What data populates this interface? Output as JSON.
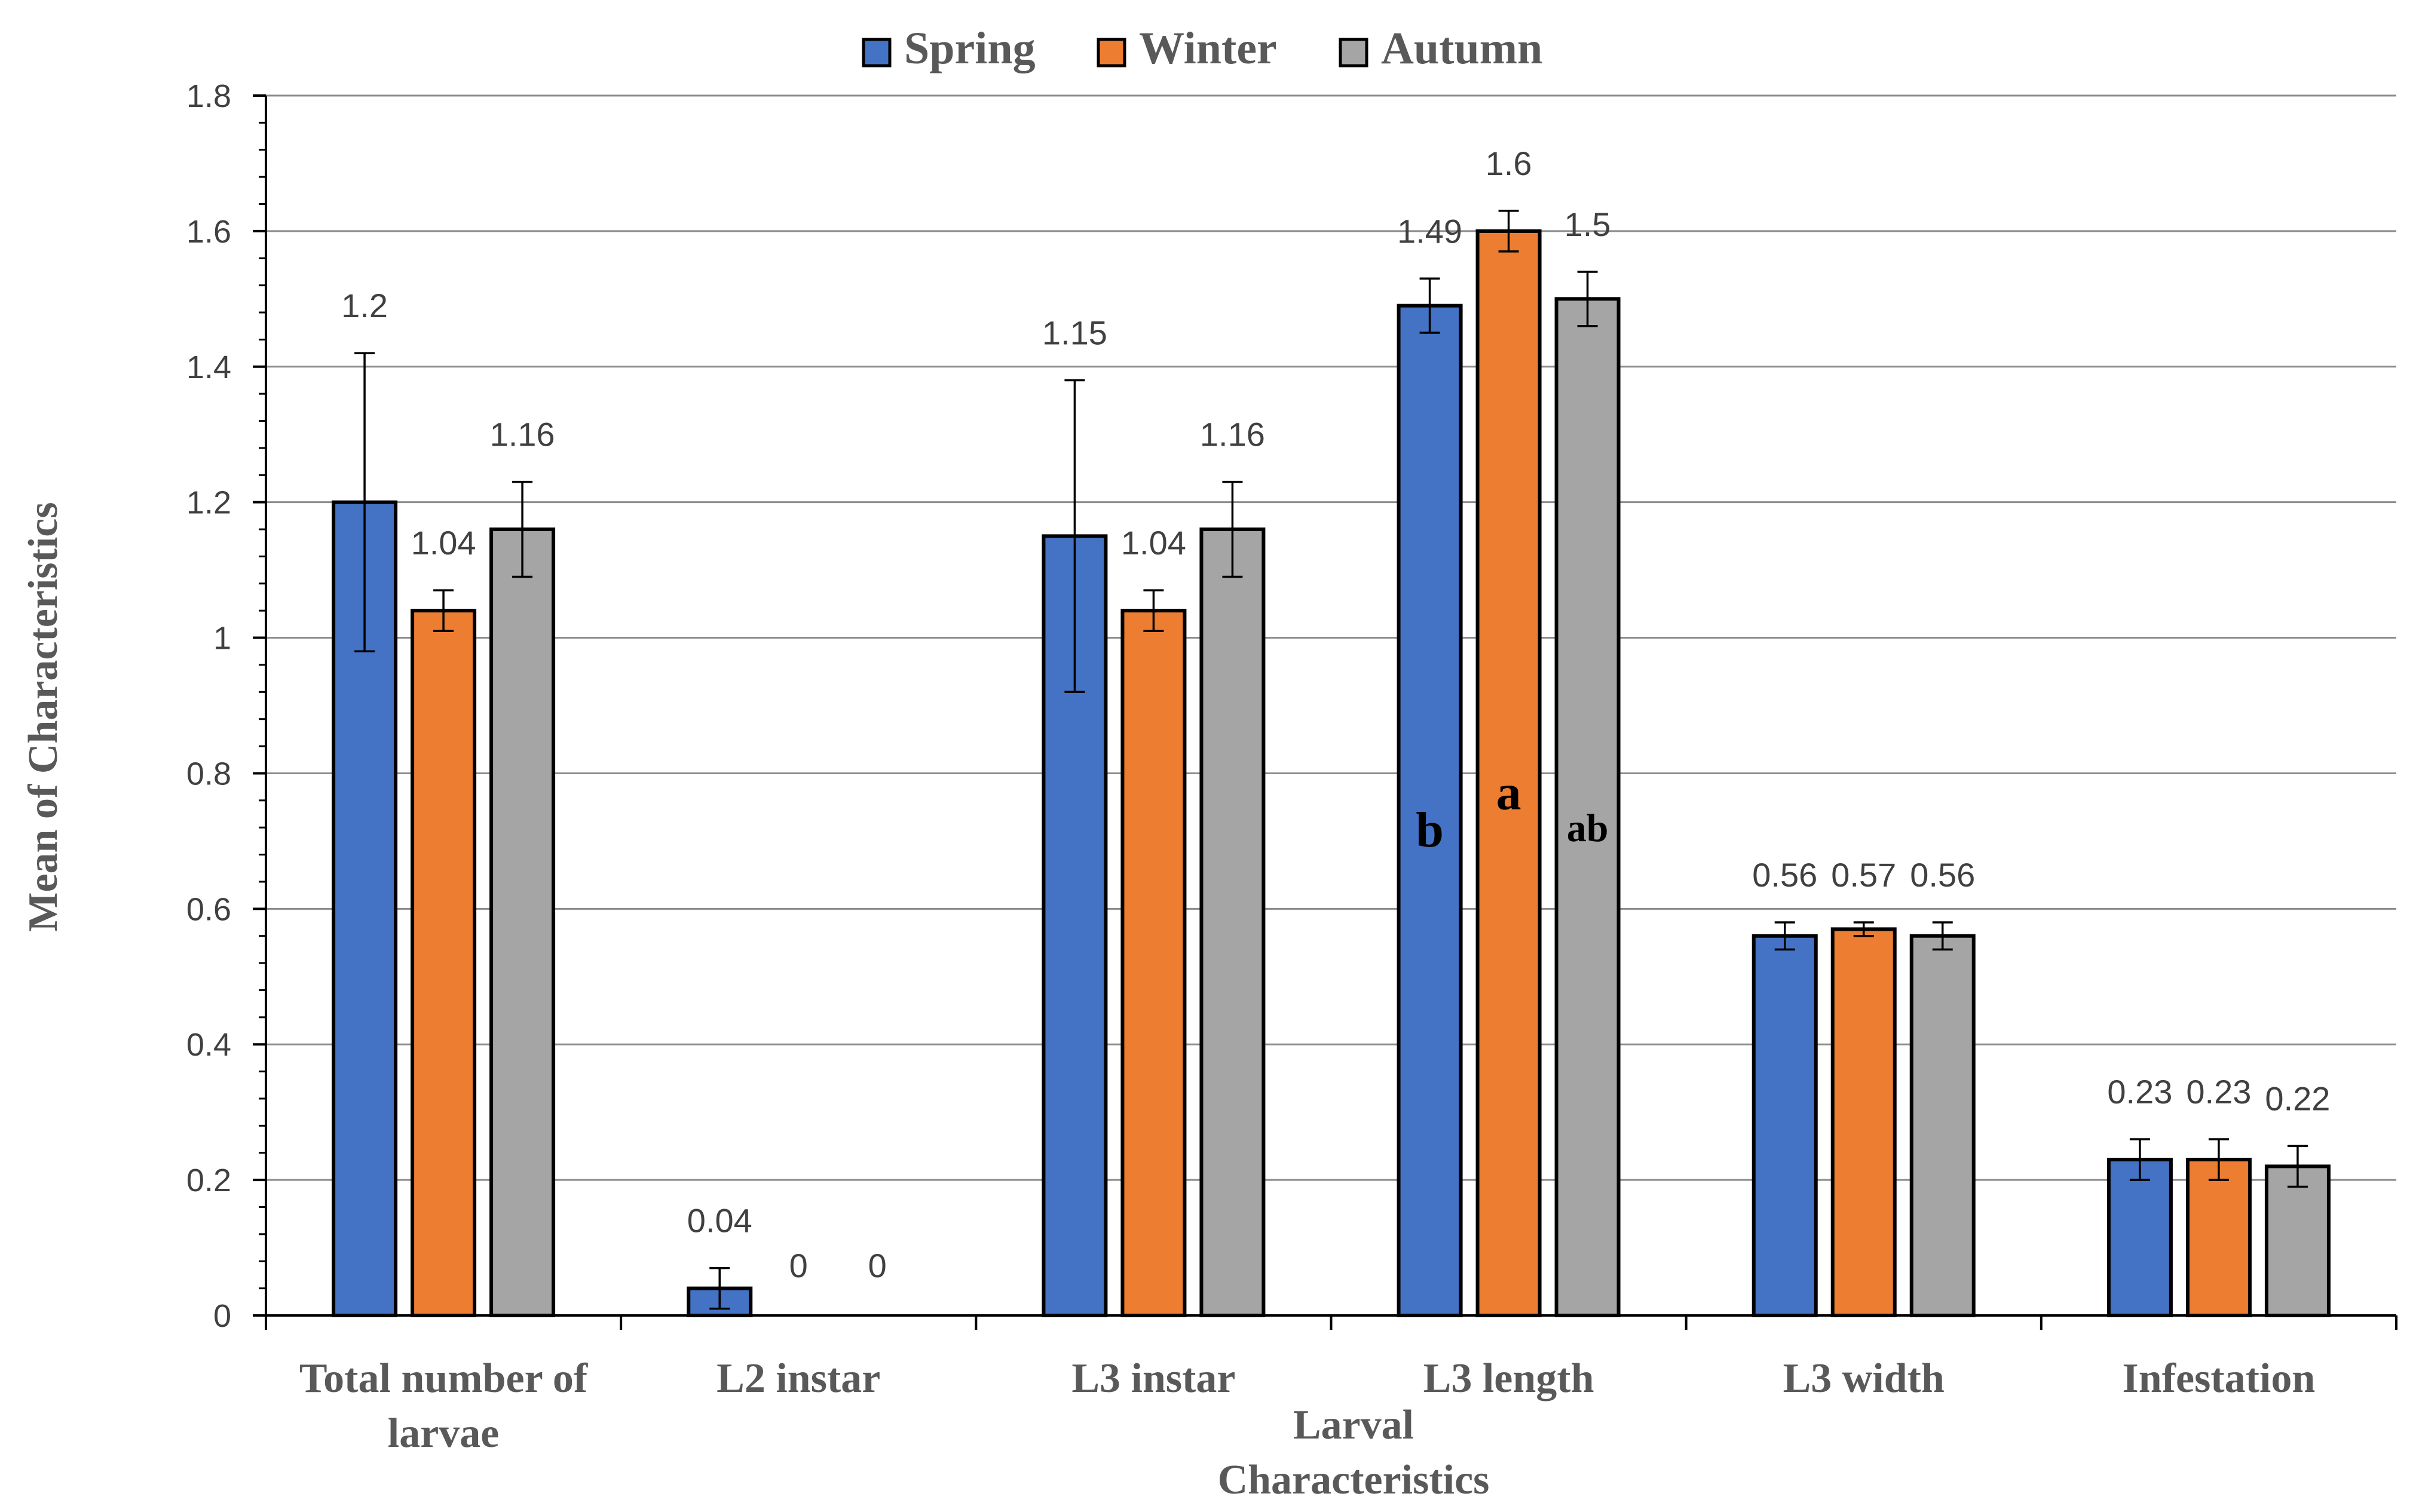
{
  "chart_data": {
    "type": "bar",
    "title": "",
    "xlabel": "Larval Characteristics",
    "ylabel": "Mean of Characteristics",
    "ylim": [
      0,
      1.8
    ],
    "ytick_step": 0.2,
    "ytick_labels": [
      "0",
      "0.2",
      "0.4",
      "0.6",
      "0.8",
      "1",
      "1.2",
      "1.4",
      "1.6",
      "1.8"
    ],
    "grid": true,
    "legend_position": "top-center",
    "categories": [
      "Total number of larvae",
      "L2 instar",
      "L3 instar",
      "L3 length",
      "L3 width",
      "Infestation"
    ],
    "series": [
      {
        "name": "Spring",
        "color": "#4472c4",
        "values": [
          1.2,
          0.04,
          1.15,
          1.49,
          0.56,
          0.23
        ],
        "errors": [
          0.22,
          0.03,
          0.23,
          0.04,
          0.02,
          0.03
        ],
        "value_labels": [
          "1.2",
          "0.04",
          "1.15",
          "1.49",
          "0.56",
          "0.23"
        ],
        "letters": [
          "",
          "",
          "",
          "b",
          "",
          ""
        ]
      },
      {
        "name": "Winter",
        "color": "#ed7d31",
        "values": [
          1.04,
          0,
          1.04,
          1.6,
          0.57,
          0.23
        ],
        "errors": [
          0.03,
          0,
          0.03,
          0.03,
          0.01,
          0.03
        ],
        "value_labels": [
          "1.04",
          "0",
          "1.04",
          "1.6",
          "0.57",
          "0.23"
        ],
        "letters": [
          "",
          "",
          "",
          "a",
          "",
          ""
        ]
      },
      {
        "name": "Autumn",
        "color": "#a5a5a5",
        "values": [
          1.16,
          0,
          1.16,
          1.5,
          0.56,
          0.22
        ],
        "errors": [
          0.07,
          0,
          0.07,
          0.04,
          0.02,
          0.03
        ],
        "value_labels": [
          "1.16",
          "0",
          "1.16",
          "1.5",
          "0.56",
          "0.22"
        ],
        "letters": [
          "",
          "",
          "",
          "ab",
          "",
          ""
        ]
      }
    ]
  }
}
